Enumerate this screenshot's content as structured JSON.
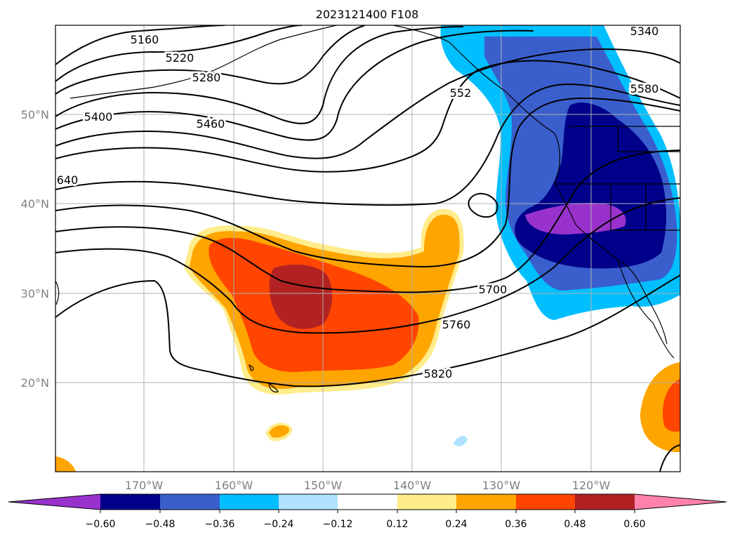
{
  "title": "2023121400 F108",
  "lat_labels": [
    "50°N",
    "40°N",
    "30°N",
    "20°N"
  ],
  "lon_labels": [
    "170°W",
    "160°W",
    "150°W",
    "140°W",
    "130°W",
    "120°W"
  ],
  "contour_labels": [
    "5160",
    "5220",
    "5280",
    "5340",
    "5400",
    "5460",
    "552",
    "5580",
    "640",
    "5700",
    "5760",
    "5820"
  ],
  "colorbar": {
    "tick_labels": [
      "−0.60",
      "−0.48",
      "−0.36",
      "−0.24",
      "−0.12",
      "0.12",
      "0.24",
      "0.36",
      "0.48",
      "0.60"
    ],
    "colors": [
      "#9932cc",
      "#00008b",
      "#3a5fcd",
      "#00bfff",
      "#b0e2ff",
      "#ffffff",
      "#ffec8b",
      "#ffa500",
      "#ff4500",
      "#b22222",
      "#ff82ab"
    ]
  },
  "colors": {
    "contour": "#000000",
    "grid": "#b0b0b0",
    "coast": "#000000"
  }
}
